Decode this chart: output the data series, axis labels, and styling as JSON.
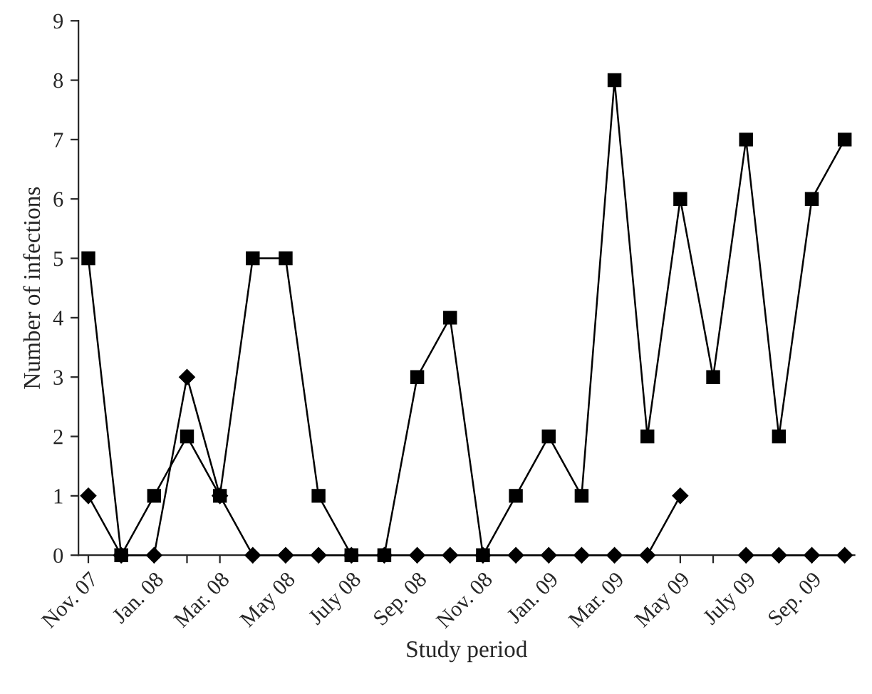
{
  "chart_data": {
    "type": "line",
    "xlabel": "Study period",
    "ylabel": "Number of infections",
    "categories": [
      "Nov. 07",
      null,
      "Jan. 08",
      null,
      "Mar. 08",
      null,
      "May 08",
      null,
      "July 08",
      null,
      "Sep. 08",
      null,
      "Nov. 08",
      null,
      "Jan. 09",
      null,
      "Mar. 09",
      null,
      "May 09",
      null,
      "July 09",
      null,
      "Sep. 09",
      null
    ],
    "series": [
      {
        "color": "#000000",
        "marker": "square",
        "values": [
          5,
          0,
          1,
          2,
          1,
          5,
          5,
          1,
          0,
          0,
          3,
          4,
          0,
          1,
          2,
          1,
          8,
          2,
          6,
          3,
          7,
          2,
          6,
          7
        ]
      },
      {
        "color": "#000000",
        "marker": "diamond",
        "values": [
          1,
          0,
          0,
          3,
          1,
          0,
          0,
          0,
          0,
          0,
          0,
          0,
          0,
          0,
          0,
          0,
          0,
          0,
          1,
          null,
          0,
          0,
          0,
          0
        ]
      }
    ],
    "ylim": [
      0,
      9
    ],
    "yticks": [
      0,
      1,
      2,
      3,
      4,
      5,
      6,
      7,
      8,
      9
    ],
    "grid": false,
    "legend": false,
    "line_style": "solid"
  }
}
